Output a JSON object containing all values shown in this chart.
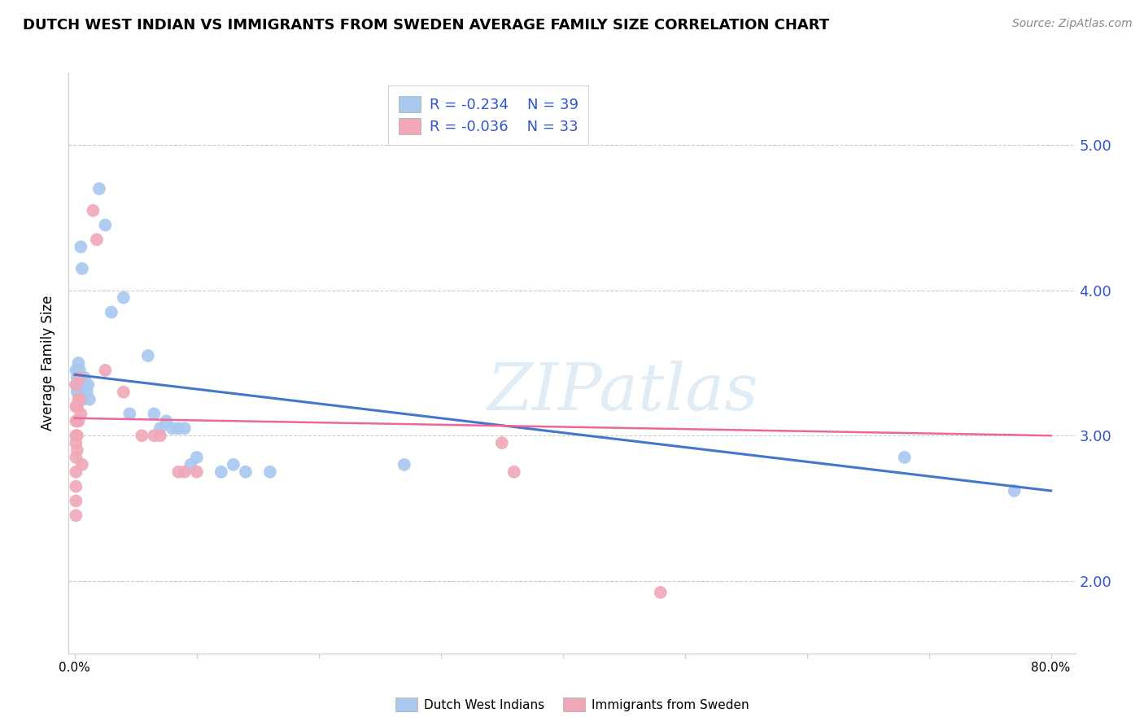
{
  "title": "DUTCH WEST INDIAN VS IMMIGRANTS FROM SWEDEN AVERAGE FAMILY SIZE CORRELATION CHART",
  "source": "Source: ZipAtlas.com",
  "ylabel": "Average Family Size",
  "watermark": "ZIPatlas",
  "ylim": [
    1.5,
    5.5
  ],
  "xlim": [
    -0.005,
    0.82
  ],
  "yticks_right": [
    2.0,
    3.0,
    4.0,
    5.0
  ],
  "xticks": [
    0.0,
    0.1,
    0.2,
    0.3,
    0.4,
    0.5,
    0.6,
    0.7,
    0.8
  ],
  "blue_R": "-0.234",
  "blue_N": "39",
  "pink_R": "-0.036",
  "pink_N": "33",
  "blue_color": "#a8c8f0",
  "pink_color": "#f0a8b8",
  "blue_line_color": "#4477cc",
  "pink_line_color": "#ee6699",
  "blue_scatter": [
    [
      0.001,
      3.45
    ],
    [
      0.001,
      3.35
    ],
    [
      0.002,
      3.4
    ],
    [
      0.002,
      3.3
    ],
    [
      0.003,
      3.5
    ],
    [
      0.003,
      3.3
    ],
    [
      0.004,
      3.45
    ],
    [
      0.004,
      3.35
    ],
    [
      0.005,
      3.35
    ],
    [
      0.005,
      4.3
    ],
    [
      0.006,
      4.15
    ],
    [
      0.007,
      3.35
    ],
    [
      0.007,
      3.25
    ],
    [
      0.008,
      3.4
    ],
    [
      0.009,
      3.35
    ],
    [
      0.01,
      3.3
    ],
    [
      0.011,
      3.35
    ],
    [
      0.012,
      3.25
    ],
    [
      0.02,
      4.7
    ],
    [
      0.025,
      4.45
    ],
    [
      0.03,
      3.85
    ],
    [
      0.04,
      3.95
    ],
    [
      0.045,
      3.15
    ],
    [
      0.06,
      3.55
    ],
    [
      0.065,
      3.15
    ],
    [
      0.07,
      3.05
    ],
    [
      0.075,
      3.1
    ],
    [
      0.08,
      3.05
    ],
    [
      0.085,
      3.05
    ],
    [
      0.09,
      3.05
    ],
    [
      0.095,
      2.8
    ],
    [
      0.1,
      2.85
    ],
    [
      0.12,
      2.75
    ],
    [
      0.13,
      2.8
    ],
    [
      0.14,
      2.75
    ],
    [
      0.16,
      2.75
    ],
    [
      0.27,
      2.8
    ],
    [
      0.68,
      2.85
    ],
    [
      0.77,
      2.62
    ]
  ],
  "pink_scatter": [
    [
      0.001,
      3.35
    ],
    [
      0.001,
      3.2
    ],
    [
      0.001,
      3.1
    ],
    [
      0.001,
      3.0
    ],
    [
      0.001,
      2.95
    ],
    [
      0.001,
      2.85
    ],
    [
      0.001,
      2.75
    ],
    [
      0.001,
      2.65
    ],
    [
      0.001,
      2.55
    ],
    [
      0.001,
      2.45
    ],
    [
      0.002,
      3.2
    ],
    [
      0.002,
      3.1
    ],
    [
      0.002,
      3.0
    ],
    [
      0.002,
      2.9
    ],
    [
      0.003,
      3.25
    ],
    [
      0.003,
      3.1
    ],
    [
      0.004,
      3.4
    ],
    [
      0.004,
      3.25
    ],
    [
      0.005,
      3.15
    ],
    [
      0.006,
      2.8
    ],
    [
      0.015,
      4.55
    ],
    [
      0.018,
      4.35
    ],
    [
      0.025,
      3.45
    ],
    [
      0.04,
      3.3
    ],
    [
      0.055,
      3.0
    ],
    [
      0.065,
      3.0
    ],
    [
      0.07,
      3.0
    ],
    [
      0.085,
      2.75
    ],
    [
      0.09,
      2.75
    ],
    [
      0.1,
      2.75
    ],
    [
      0.35,
      2.95
    ],
    [
      0.36,
      2.75
    ],
    [
      0.48,
      1.92
    ]
  ],
  "blue_trendline": [
    [
      0.0,
      3.42
    ],
    [
      0.8,
      2.62
    ]
  ],
  "pink_trendline": [
    [
      0.0,
      3.12
    ],
    [
      0.8,
      3.0
    ]
  ],
  "legend_text_color": "#3355cc",
  "title_fontsize": 13,
  "source_fontsize": 10,
  "marker_size": 130,
  "background_color": "#ffffff",
  "grid_color": "#cccccc"
}
